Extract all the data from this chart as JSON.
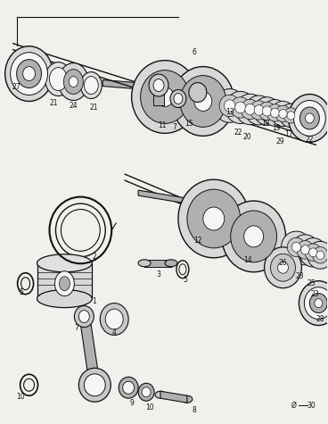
{
  "bg_color": "#f0f0ec",
  "line_color": "#111111",
  "fig_width": 3.68,
  "fig_height": 4.75,
  "dpi": 100
}
